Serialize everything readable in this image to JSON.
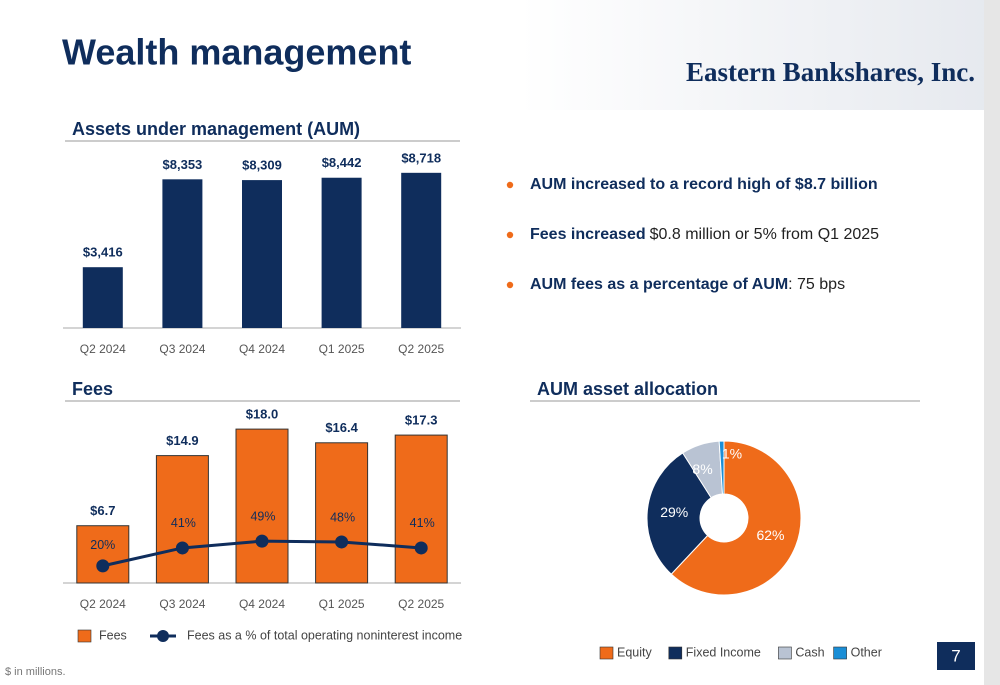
{
  "title": "Wealth management",
  "logo": "Eastern Bankshares, Inc.",
  "bullets": [
    {
      "bold": "AUM increased to a record high of $8.7 billion"
    },
    {
      "bold": "Fees increased",
      "text": "$0.8 million or 5% from Q1 2025"
    },
    {
      "bold": "AUM fees as a percentage of AUM",
      "text": ": 75 bps"
    }
  ],
  "footnote": "$ in millions.",
  "page_number": "7",
  "chart_data": [
    {
      "type": "bar",
      "title": "Assets under management (AUM)",
      "categories": [
        "Q2 2024",
        "Q3 2024",
        "Q4 2024",
        "Q1 2025",
        "Q2 2025"
      ],
      "values": [
        3416,
        8353,
        8309,
        8442,
        8718
      ],
      "value_labels": [
        "$3,416",
        "$8,353",
        "$8,309",
        "$8,442",
        "$8,718"
      ],
      "color": "#0f2d5c",
      "ylim": [
        0,
        10000
      ]
    },
    {
      "type": "bar",
      "title": "Fees",
      "categories": [
        "Q2 2024",
        "Q3 2024",
        "Q4 2024",
        "Q1 2025",
        "Q2 2025"
      ],
      "series": [
        {
          "name": "Fees",
          "color": "#ef6b1a",
          "values": [
            6.7,
            14.9,
            18.0,
            16.4,
            17.3
          ],
          "value_labels": [
            "$6.7",
            "$14.9",
            "$18.0",
            "$16.4",
            "$17.3"
          ]
        },
        {
          "name": "Fees as a % of total operating noninterest income",
          "color": "#0f2d5c",
          "axis": "y2",
          "type": "line",
          "values": [
            20,
            41,
            49,
            48,
            41
          ],
          "value_labels": [
            "20%",
            "41%",
            "49%",
            "48%",
            "41%"
          ]
        }
      ],
      "ylim": [
        0,
        20
      ],
      "y2lim": [
        0,
        200
      ]
    },
    {
      "type": "pie",
      "title": "AUM asset allocation",
      "categories": [
        "Equity",
        "Fixed Income",
        "Cash",
        "Other"
      ],
      "values": [
        62,
        29,
        8,
        1
      ],
      "value_labels": [
        "62%",
        "29%",
        "8%",
        "1%"
      ],
      "colors": [
        "#ef6b1a",
        "#0f2d5c",
        "#b9c3d3",
        "#1a8ed6"
      ]
    }
  ]
}
